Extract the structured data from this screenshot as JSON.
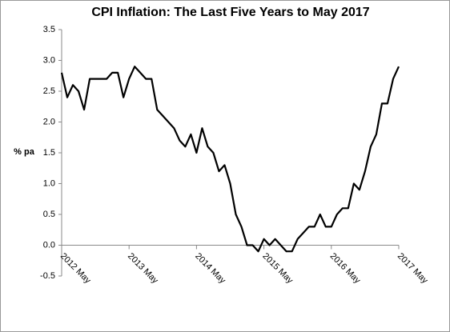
{
  "chart_data": {
    "type": "line",
    "title": "CPI Inflation: The Last Five Years to May  2017",
    "y_label": "% pa",
    "categories": [
      "2012 May",
      null,
      null,
      null,
      null,
      null,
      null,
      null,
      null,
      null,
      null,
      null,
      "2013 May",
      null,
      null,
      null,
      null,
      null,
      null,
      null,
      null,
      null,
      null,
      null,
      "2014 May",
      null,
      null,
      null,
      null,
      null,
      null,
      null,
      null,
      null,
      null,
      null,
      "2015 May",
      null,
      null,
      null,
      null,
      null,
      null,
      null,
      null,
      null,
      null,
      null,
      "2016 May",
      null,
      null,
      null,
      null,
      null,
      null,
      null,
      null,
      null,
      null,
      null,
      "2017 May"
    ],
    "series": [
      {
        "color": "#000000",
        "values": [
          2.8,
          2.4,
          2.6,
          2.5,
          2.2,
          2.7,
          2.7,
          2.7,
          2.7,
          2.8,
          2.8,
          2.4,
          2.7,
          2.9,
          2.8,
          2.7,
          2.7,
          2.2,
          2.1,
          2.0,
          1.9,
          1.7,
          1.6,
          1.8,
          1.5,
          1.9,
          1.6,
          1.5,
          1.2,
          1.3,
          1.0,
          0.5,
          0.3,
          0.0,
          0.0,
          -0.1,
          0.1,
          0.0,
          0.1,
          0.0,
          -0.1,
          -0.1,
          0.1,
          0.2,
          0.3,
          0.3,
          0.5,
          0.3,
          0.3,
          0.5,
          0.6,
          0.6,
          1.0,
          0.9,
          1.2,
          1.6,
          1.8,
          2.3,
          2.3,
          2.7,
          2.9
        ]
      }
    ],
    "ylim": [
      -0.5,
      3.5
    ],
    "yticks": [
      -0.5,
      {
        "value": 0,
        "label": "0.0"
      },
      0.5,
      {
        "value": 1,
        "label": "1.0"
      },
      1.5,
      {
        "value": 2,
        "label": "2.0"
      },
      2.5,
      {
        "value": 3,
        "label": "3.0"
      },
      3.5
    ],
    "grid": false
  }
}
